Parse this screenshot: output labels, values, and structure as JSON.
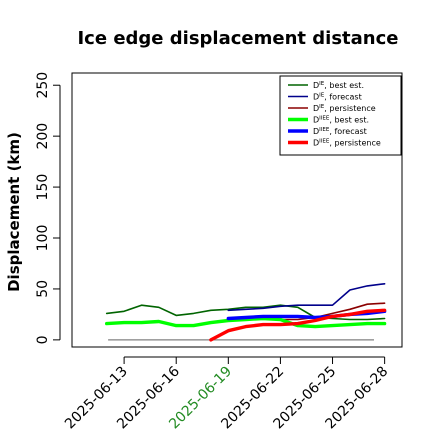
{
  "chart_data": {
    "type": "line",
    "title": "Ice edge displacement distance",
    "xlabel": "",
    "ylabel": "Displacement (km)",
    "ylim": [
      -7,
      262
    ],
    "yticks": [
      0,
      50,
      100,
      150,
      200,
      250
    ],
    "xlim": [
      "2025-06-10",
      "2025-06-29"
    ],
    "xticks": [
      "2025-06-13",
      "2025-06-16",
      "2025-06-19",
      "2025-06-22",
      "2025-06-25",
      "2025-06-28"
    ],
    "highlight_tick": "2025-06-19",
    "highlight_color": "#228B22",
    "reference_line": 0,
    "grid": false,
    "legend_position": "top-right",
    "series": [
      {
        "name": "D^IE, best est.",
        "label_base": "D",
        "label_sup": "IE",
        "label_rest": ", best est.",
        "color": "#006400",
        "width": 1.6,
        "x": [
          "2025-06-12",
          "2025-06-13",
          "2025-06-14",
          "2025-06-15",
          "2025-06-16",
          "2025-06-17",
          "2025-06-18",
          "2025-06-19",
          "2025-06-20",
          "2025-06-21",
          "2025-06-22",
          "2025-06-23",
          "2025-06-24",
          "2025-06-25",
          "2025-06-26",
          "2025-06-27",
          "2025-06-28"
        ],
        "y": [
          26,
          28,
          34,
          32,
          24,
          26,
          29,
          30,
          32,
          32,
          34,
          32,
          22,
          21,
          20,
          20,
          21
        ]
      },
      {
        "name": "D^IE, forecast",
        "label_base": "D",
        "label_sup": "IE",
        "label_rest": ", forecast",
        "color": "#00008B",
        "width": 1.6,
        "x": [
          "2025-06-19",
          "2025-06-20",
          "2025-06-21",
          "2025-06-22",
          "2025-06-23",
          "2025-06-24",
          "2025-06-25",
          "2025-06-26",
          "2025-06-27",
          "2025-06-28"
        ],
        "y": [
          29,
          30,
          31,
          33,
          34,
          34,
          34,
          49,
          53,
          55
        ]
      },
      {
        "name": "D^IE, persistence",
        "label_base": "D",
        "label_sup": "IE",
        "label_rest": ", persistence",
        "color": "#8B0000",
        "width": 1.6,
        "x": [
          "2025-06-19",
          "2025-06-20",
          "2025-06-21",
          "2025-06-22",
          "2025-06-23",
          "2025-06-24",
          "2025-06-25",
          "2025-06-26",
          "2025-06-27",
          "2025-06-28"
        ],
        "y": [
          19,
          20,
          21,
          20,
          20,
          22,
          26,
          30,
          35,
          36
        ]
      },
      {
        "name": "D^IIEE, best est.",
        "label_base": "D",
        "label_sup": "IIEE",
        "label_rest": ", best est.",
        "color": "#00FF00",
        "width": 3.4,
        "x": [
          "2025-06-12",
          "2025-06-13",
          "2025-06-14",
          "2025-06-15",
          "2025-06-16",
          "2025-06-17",
          "2025-06-18",
          "2025-06-19",
          "2025-06-20",
          "2025-06-21",
          "2025-06-22",
          "2025-06-23",
          "2025-06-24",
          "2025-06-25",
          "2025-06-26",
          "2025-06-27",
          "2025-06-28"
        ],
        "y": [
          16,
          17,
          17,
          18,
          14,
          14,
          17,
          19,
          20,
          21,
          20,
          14,
          13,
          14,
          15,
          16,
          16
        ]
      },
      {
        "name": "D^IIEE, forecast",
        "label_base": "D",
        "label_sup": "IIEE",
        "label_rest": ", forecast",
        "color": "#0000FF",
        "width": 3.4,
        "x": [
          "2025-06-19",
          "2025-06-20",
          "2025-06-21",
          "2025-06-22",
          "2025-06-23",
          "2025-06-24",
          "2025-06-25",
          "2025-06-26",
          "2025-06-27",
          "2025-06-28"
        ],
        "y": [
          21,
          22,
          23,
          23,
          23,
          22,
          23,
          25,
          26,
          28
        ]
      },
      {
        "name": "D^IIEE, persistence",
        "label_base": "D",
        "label_sup": "IIEE",
        "label_rest": ", persistence",
        "color": "#FF0000",
        "width": 3.4,
        "x": [
          "2025-06-18",
          "2025-06-19",
          "2025-06-20",
          "2025-06-21",
          "2025-06-22",
          "2025-06-23",
          "2025-06-24",
          "2025-06-25",
          "2025-06-26",
          "2025-06-27",
          "2025-06-28"
        ],
        "y": [
          0,
          9,
          13,
          15,
          15,
          16,
          19,
          23,
          25,
          28,
          29
        ]
      }
    ]
  }
}
